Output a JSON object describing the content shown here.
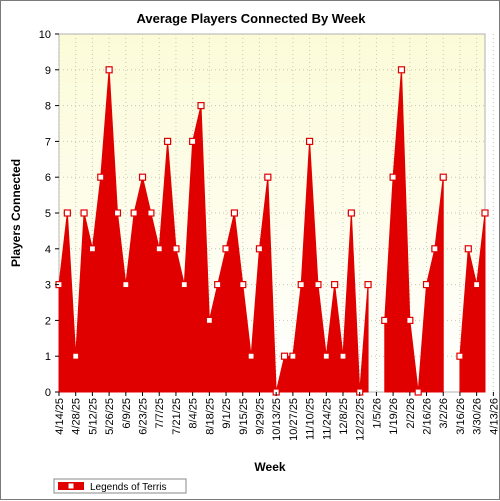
{
  "chart_data": {
    "type": "area",
    "title": "Average Players Connected By Week",
    "xlabel": "Week",
    "ylabel": "Players Connected",
    "ylim": [
      0,
      10
    ],
    "yticks": [
      0,
      1,
      2,
      3,
      4,
      5,
      6,
      7,
      8,
      9,
      10
    ],
    "grid": true,
    "legend_position": "bottom-left",
    "colors": {
      "series": "#e10000",
      "marker_fill": "#ffffff",
      "plot_bg_top": "#fcfbd8",
      "plot_bg_bottom": "#ffffff"
    },
    "x_tick_labels": [
      "4/14/25",
      "4/28/25",
      "5/12/25",
      "5/26/25",
      "6/9/25",
      "6/23/25",
      "7/7/25",
      "7/21/25",
      "8/4/25",
      "8/18/25",
      "9/1/25",
      "9/15/25",
      "9/29/25",
      "10/13/25",
      "10/27/25",
      "11/10/25",
      "11/24/25",
      "12/8/25",
      "12/22/25",
      "1/5/26",
      "1/19/26",
      "2/2/26",
      "2/16/26",
      "3/2/26",
      "3/16/26",
      "3/30/26",
      "4/13/26"
    ],
    "series": [
      {
        "name": "Legends of Terris",
        "values": [
          3,
          5,
          1,
          5,
          4,
          6,
          9,
          5,
          3,
          5,
          6,
          5,
          4,
          7,
          4,
          3,
          7,
          8,
          2,
          3,
          4,
          5,
          3,
          1,
          4,
          6,
          0,
          1,
          1,
          3,
          7,
          3,
          1,
          3,
          1,
          5,
          0,
          3,
          null,
          2,
          6,
          9,
          2,
          0,
          3,
          4,
          6,
          null,
          1,
          4,
          3,
          5
        ]
      }
    ]
  }
}
